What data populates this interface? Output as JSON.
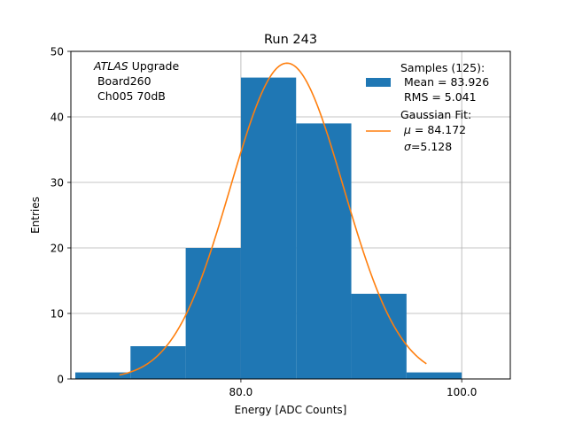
{
  "chart_data": {
    "type": "bar",
    "title": "Run 243",
    "xlabel": "Energy [ADC Counts]",
    "ylabel": "Entries",
    "xlim": [
      64.6,
      104.4
    ],
    "ylim": [
      0,
      50
    ],
    "xticks": [
      80.0,
      100.0
    ],
    "xtick_labels": [
      "80.0",
      "100.0"
    ],
    "yticks": [
      0,
      10,
      20,
      30,
      40,
      50
    ],
    "ytick_labels": [
      "0",
      "10",
      "20",
      "30",
      "40",
      "50"
    ],
    "grid": true,
    "bar_color": "#1f77b4",
    "fit_color": "#ff7f0e",
    "bins": [
      {
        "x0": 65,
        "x1": 70,
        "count": 1
      },
      {
        "x0": 70,
        "x1": 75,
        "count": 5
      },
      {
        "x0": 75,
        "x1": 80,
        "count": 20
      },
      {
        "x0": 80,
        "x1": 85,
        "count": 46
      },
      {
        "x0": 85,
        "x1": 90,
        "count": 39
      },
      {
        "x0": 90,
        "x1": 95,
        "count": 13
      },
      {
        "x0": 95,
        "x1": 100,
        "count": 1
      }
    ],
    "gaussian_fit": {
      "mu": 84.172,
      "sigma": 5.128,
      "amplitude": 48.2,
      "x_range": [
        69.0,
        96.8
      ]
    },
    "annotation": {
      "line1_italic": "ATLAS",
      "line1_rest": " Upgrade",
      "line2": " Board260",
      "line3": " Ch005 70dB"
    },
    "legend": {
      "position": "top-right",
      "samples_title": "Samples (125):",
      "samples_mean": " Mean = 83.926",
      "samples_rms": " RMS = 5.041",
      "fit_title": "Gaussian Fit:",
      "fit_mu_symbol": "μ",
      "fit_mu_rest": " = 84.172",
      "fit_sigma_symbol": "σ",
      "fit_sigma_rest": "=5.128"
    }
  }
}
